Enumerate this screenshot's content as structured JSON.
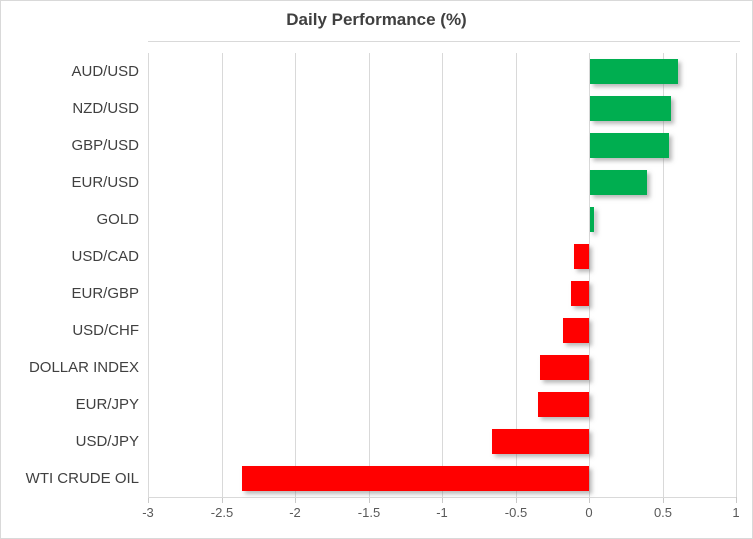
{
  "window": {
    "background": "#FFFFFF",
    "frame_border_color": "#D9D9D9"
  },
  "chart_data": {
    "type": "bar",
    "orientation": "horizontal",
    "title": "Daily Performance (%)",
    "categories": [
      "AUD/USD",
      "NZD/USD",
      "GBP/USD",
      "EUR/USD",
      "GOLD",
      "USD/CAD",
      "EUR/GBP",
      "USD/CHF",
      "DOLLAR INDEX",
      "EUR/JPY",
      "USD/JPY",
      "WTI CRUDE OIL"
    ],
    "values": [
      0.6,
      0.55,
      0.54,
      0.39,
      0.03,
      -0.1,
      -0.12,
      -0.18,
      -0.33,
      -0.35,
      -0.66,
      -2.36
    ],
    "xlabel": "",
    "ylabel": "",
    "xlim": [
      -3,
      1
    ],
    "x_ticks": [
      -3,
      -2.5,
      -2,
      -1.5,
      -1,
      -0.5,
      0,
      0.5,
      1
    ],
    "x_tick_labels": [
      "-3",
      "-2.5",
      "-2",
      "-1.5",
      "-1",
      "-0.5",
      "0",
      "0.5",
      "1"
    ],
    "grid": true,
    "legend": "none",
    "bar_baseline": 0,
    "colors": {
      "positive_bar": "#00AE50",
      "negative_bar": "#FF0000",
      "gridline": "#D9D9D9",
      "axis_line": "#D9D9D9",
      "tick_mark": "#C9C9C9",
      "title_text": "#404040",
      "category_text": "#404040",
      "tick_text": "#595959"
    }
  }
}
